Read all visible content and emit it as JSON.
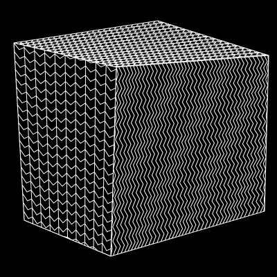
{
  "colors": {
    "background": "#000000",
    "line": "#ffffff"
  },
  "subject": {
    "icon": "wireframe-cube-icon",
    "pattern": "zigzag-chevron-hatching"
  }
}
